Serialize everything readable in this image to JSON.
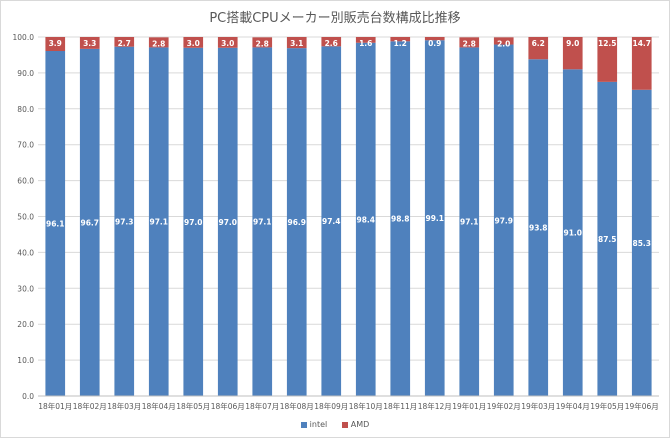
{
  "chart_data": {
    "type": "bar",
    "stacked": true,
    "title": "PC搭載CPUメーカー別販売台数構成比推移",
    "categories": [
      "18年01月",
      "18年02月",
      "18年03月",
      "18年04月",
      "18年05月",
      "18年06月",
      "18年07月",
      "18年08月",
      "18年09月",
      "18年10月",
      "18年11月",
      "18年12月",
      "19年01月",
      "19年02月",
      "19年03月",
      "19年04月",
      "19年05月",
      "19年06月"
    ],
    "ylim": [
      0,
      100
    ],
    "yticks": [
      "0.0",
      "10.0",
      "20.0",
      "30.0",
      "40.0",
      "50.0",
      "60.0",
      "70.0",
      "80.0",
      "90.0",
      "100.0"
    ],
    "grid": true,
    "legend_position": "bottom",
    "series": [
      {
        "name": "intel",
        "color": "#4f81bd",
        "values": [
          96.1,
          96.7,
          97.3,
          97.1,
          97.0,
          97.0,
          97.1,
          96.9,
          97.4,
          98.4,
          98.8,
          99.1,
          97.1,
          97.9,
          93.8,
          91.0,
          87.5,
          85.3
        ]
      },
      {
        "name": "AMD",
        "color": "#c0504d",
        "values": [
          3.9,
          3.3,
          2.7,
          2.8,
          3.0,
          3.0,
          2.8,
          3.1,
          2.6,
          1.6,
          1.2,
          0.9,
          2.8,
          2.0,
          6.2,
          9.0,
          12.5,
          14.7
        ]
      }
    ]
  }
}
